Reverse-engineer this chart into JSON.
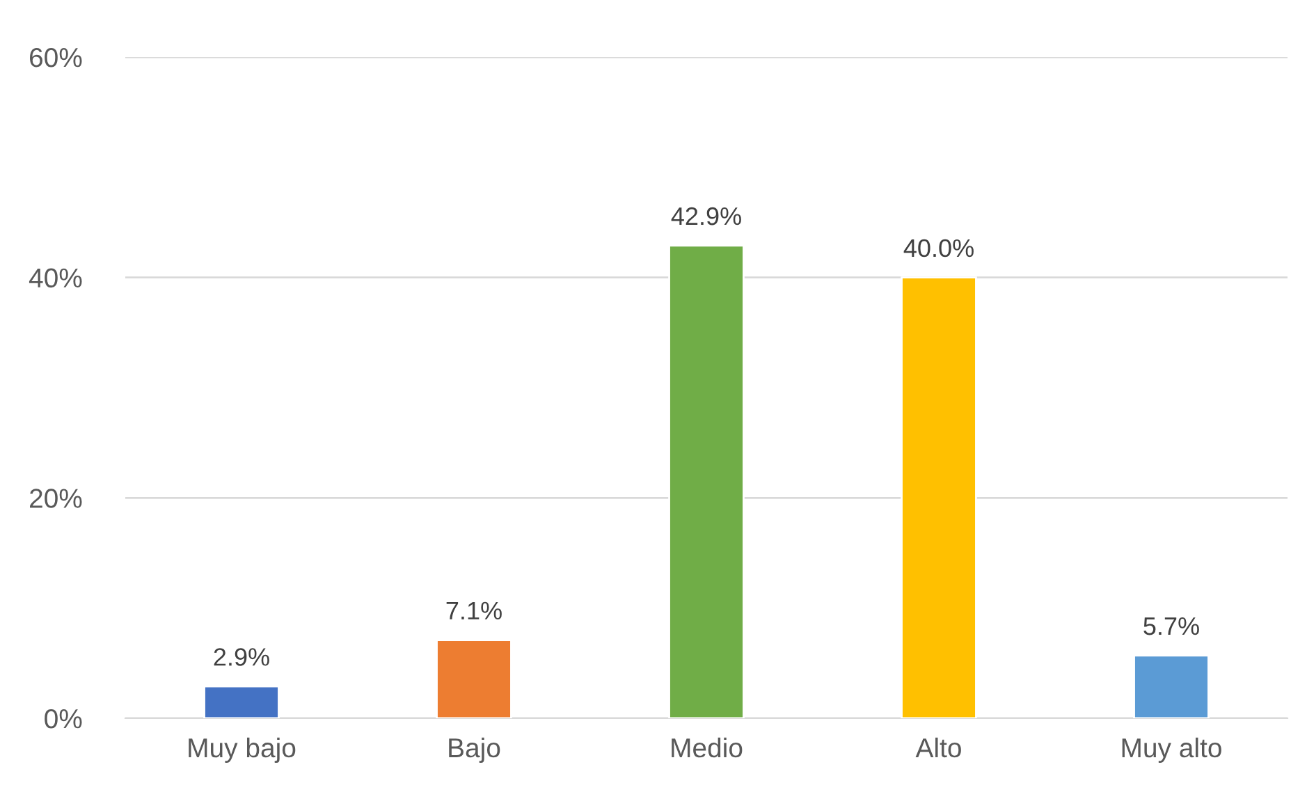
{
  "chart_data": {
    "type": "bar",
    "categories": [
      "Muy bajo",
      "Bajo",
      "Medio",
      "Alto",
      "Muy alto"
    ],
    "values": [
      2.9,
      7.1,
      42.9,
      40.0,
      5.7
    ],
    "colors": [
      "#4472c4",
      "#ed7d31",
      "#70ad47",
      "#ffc000",
      "#5b9bd5"
    ],
    "value_labels": [
      "2.9%",
      "7.1%",
      "42.9%",
      "40.0%",
      "5.7%"
    ],
    "ylim": [
      0,
      60
    ],
    "yticks": [
      {
        "value": 0,
        "label": "0%"
      },
      {
        "value": 20,
        "label": "20%"
      },
      {
        "value": 40,
        "label": "40%"
      },
      {
        "value": 60,
        "label": "60%"
      }
    ],
    "grid": "y"
  }
}
